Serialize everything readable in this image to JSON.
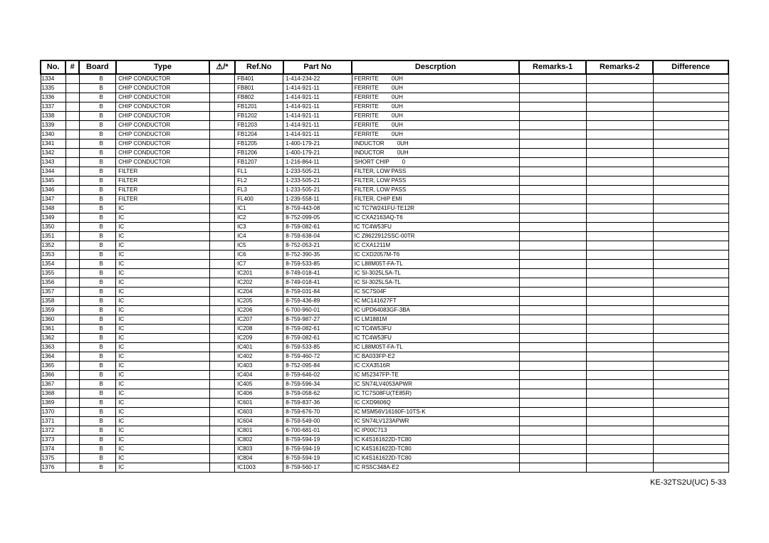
{
  "headers": {
    "no": "No.",
    "hash": "#",
    "board": "Board",
    "type": "Type",
    "warn": "⚠/*",
    "ref": "Ref.No",
    "part": "Part No",
    "desc": "Descrption",
    "r1": "Remarks-1",
    "r2": "Remarks-2",
    "diff": "Difference"
  },
  "footer": "KE-32TS2U(UC)    5-33",
  "rows": [
    {
      "no": "1334",
      "board": "B",
      "type": "CHIP CONDUCTOR",
      "ref": "FB401",
      "part": "1-414-234-22",
      "descA": "FERRITE",
      "descB": "0UH"
    },
    {
      "no": "1335",
      "board": "B",
      "type": "CHIP CONDUCTOR",
      "ref": "FB801",
      "part": "1-414-921-11",
      "descA": "FERRITE",
      "descB": "0UH"
    },
    {
      "no": "1336",
      "board": "B",
      "type": "CHIP CONDUCTOR",
      "ref": "FB802",
      "part": "1-414-921-11",
      "descA": "FERRITE",
      "descB": "0UH"
    },
    {
      "no": "1337",
      "board": "B",
      "type": "CHIP CONDUCTOR",
      "ref": "FB1201",
      "part": "1-414-921-11",
      "descA": "FERRITE",
      "descB": "0UH"
    },
    {
      "no": "1338",
      "board": "B",
      "type": "CHIP CONDUCTOR",
      "ref": "FB1202",
      "part": "1-414-921-11",
      "descA": "FERRITE",
      "descB": "0UH"
    },
    {
      "no": "1339",
      "board": "B",
      "type": "CHIP CONDUCTOR",
      "ref": "FB1203",
      "part": "1-414-921-11",
      "descA": "FERRITE",
      "descB": "0UH"
    },
    {
      "no": "1340",
      "board": "B",
      "type": "CHIP CONDUCTOR",
      "ref": "FB1204",
      "part": "1-414-921-11",
      "descA": "FERRITE",
      "descB": "0UH"
    },
    {
      "no": "1341",
      "board": "B",
      "type": "CHIP CONDUCTOR",
      "ref": "FB1205",
      "part": "1-400-179-21",
      "descA": "INDUCTOR",
      "descB": "0UH"
    },
    {
      "no": "1342",
      "board": "B",
      "type": "CHIP CONDUCTOR",
      "ref": "FB1206",
      "part": "1-400-179-21",
      "descA": "INDUCTOR",
      "descB": "0UH"
    },
    {
      "no": "1343",
      "board": "B",
      "type": "CHIP CONDUCTOR",
      "ref": "FB1207",
      "part": "1-216-864-11",
      "descA": "SHORT CHIP",
      "descB": "0"
    },
    {
      "no": "1344",
      "board": "B",
      "type": "FILTER",
      "ref": "FL1",
      "part": "1-233-505-21",
      "descA": "FILTER, LOW PASS",
      "descB": ""
    },
    {
      "no": "1345",
      "board": "B",
      "type": "FILTER",
      "ref": "FL2",
      "part": "1-233-505-21",
      "descA": "FILTER, LOW PASS",
      "descB": ""
    },
    {
      "no": "1346",
      "board": "B",
      "type": "FILTER",
      "ref": "FL3",
      "part": "1-233-505-21",
      "descA": "FILTER, LOW PASS",
      "descB": ""
    },
    {
      "no": "1347",
      "board": "B",
      "type": "FILTER",
      "ref": "FL400",
      "part": "1-239-558-11",
      "descA": "FILTER, CHIP EMI",
      "descB": ""
    },
    {
      "no": "1348",
      "board": "B",
      "type": "IC",
      "ref": "IC1",
      "part": "8-759-443-08",
      "descA": "IC TC7W241FU-TE12R",
      "descB": ""
    },
    {
      "no": "1349",
      "board": "B",
      "type": "IC",
      "ref": "IC2",
      "part": "8-752-099-05",
      "descA": "IC CXA2163AQ-T6",
      "descB": ""
    },
    {
      "no": "1350",
      "board": "B",
      "type": "IC",
      "ref": "IC3",
      "part": "8-759-082-61",
      "descA": "IC TC4W53FU",
      "descB": ""
    },
    {
      "no": "1351",
      "board": "B",
      "type": "IC",
      "ref": "IC4",
      "part": "8-759-638-04",
      "descA": "IC Z8622912SSC-00TR",
      "descB": ""
    },
    {
      "no": "1352",
      "board": "B",
      "type": "IC",
      "ref": "IC5",
      "part": "8-752-053-21",
      "descA": "IC CXA1211M",
      "descB": ""
    },
    {
      "no": "1353",
      "board": "B",
      "type": "IC",
      "ref": "IC6",
      "part": "8-752-390-35",
      "descA": "IC CXD2057M-T6",
      "descB": ""
    },
    {
      "no": "1354",
      "board": "B",
      "type": "IC",
      "ref": "IC7",
      "part": "8-759-533-85",
      "descA": "IC L88M05T-FA-TL",
      "descB": ""
    },
    {
      "no": "1355",
      "board": "B",
      "type": "IC",
      "ref": "IC201",
      "part": "8-749-018-41",
      "descA": "IC SI-3025LSA-TL",
      "descB": ""
    },
    {
      "no": "1356",
      "board": "B",
      "type": "IC",
      "ref": "IC202",
      "part": "8-749-018-41",
      "descA": "IC SI-3025LSA-TL",
      "descB": ""
    },
    {
      "no": "1357",
      "board": "B",
      "type": "IC",
      "ref": "IC204",
      "part": "8-759-031-84",
      "descA": "IC SC7S04F",
      "descB": ""
    },
    {
      "no": "1358",
      "board": "B",
      "type": "IC",
      "ref": "IC205",
      "part": "8-759-436-89",
      "descA": "IC MC141627FT",
      "descB": ""
    },
    {
      "no": "1359",
      "board": "B",
      "type": "IC",
      "ref": "IC206",
      "part": "6-700-960-01",
      "descA": "IC UPD64083GF-3BA",
      "descB": ""
    },
    {
      "no": "1360",
      "board": "B",
      "type": "IC",
      "ref": "IC207",
      "part": "8-759-987-27",
      "descA": "IC LM1881M",
      "descB": ""
    },
    {
      "no": "1361",
      "board": "B",
      "type": "IC",
      "ref": "IC208",
      "part": "8-759-082-61",
      "descA": "IC TC4W53FU",
      "descB": ""
    },
    {
      "no": "1362",
      "board": "B",
      "type": "IC",
      "ref": "IC209",
      "part": "8-759-082-61",
      "descA": "IC TC4W53FU",
      "descB": ""
    },
    {
      "no": "1363",
      "board": "B",
      "type": "IC",
      "ref": "IC401",
      "part": "8-759-533-85",
      "descA": "IC L88M05T-FA-TL",
      "descB": ""
    },
    {
      "no": "1364",
      "board": "B",
      "type": "IC",
      "ref": "IC402",
      "part": "8-759-460-72",
      "descA": "IC BA033FP-E2",
      "descB": ""
    },
    {
      "no": "1365",
      "board": "B",
      "type": "IC",
      "ref": "IC403",
      "part": "8-752-095-84",
      "descA": "IC CXA3516R",
      "descB": ""
    },
    {
      "no": "1366",
      "board": "B",
      "type": "IC",
      "ref": "IC404",
      "part": "8-759-646-02",
      "descA": "IC M52347FP-TE",
      "descB": ""
    },
    {
      "no": "1367",
      "board": "B",
      "type": "IC",
      "ref": "IC405",
      "part": "8-759-596-34",
      "descA": "IC SN74LV4053APWR",
      "descB": ""
    },
    {
      "no": "1368",
      "board": "B",
      "type": "IC",
      "ref": "IC406",
      "part": "8-759-058-62",
      "descA": "IC TC7S08FU(TE85R)",
      "descB": ""
    },
    {
      "no": "1369",
      "board": "B",
      "type": "IC",
      "ref": "IC601",
      "part": "8-759-837-36",
      "descA": "IC CXD9606Q",
      "descB": ""
    },
    {
      "no": "1370",
      "board": "B",
      "type": "IC",
      "ref": "IC603",
      "part": "8-759-676-70",
      "descA": "IC MSM56V16160F-10TS-K",
      "descB": ""
    },
    {
      "no": "1371",
      "board": "B",
      "type": "IC",
      "ref": "IC604",
      "part": "8-759-549-00",
      "descA": "IC SN74LV123APWR",
      "descB": ""
    },
    {
      "no": "1372",
      "board": "B",
      "type": "IC",
      "ref": "IC801",
      "part": "6-700-681-01",
      "descA": "IC IP00C713",
      "descB": ""
    },
    {
      "no": "1373",
      "board": "B",
      "type": "IC",
      "ref": "IC802",
      "part": "8-759-594-19",
      "descA": "IC K4S161622D-TC80",
      "descB": ""
    },
    {
      "no": "1374",
      "board": "B",
      "type": "IC",
      "ref": "IC803",
      "part": "8-759-594-19",
      "descA": "IC K4S161622D-TC80",
      "descB": ""
    },
    {
      "no": "1375",
      "board": "B",
      "type": "IC",
      "ref": "IC804",
      "part": "8-759-594-19",
      "descA": "IC K4S161622D-TC80",
      "descB": ""
    },
    {
      "no": "1376",
      "board": "B",
      "type": "IC",
      "ref": "IC1003",
      "part": "8-759-560-17",
      "descA": "IC RS5C348A-E2",
      "descB": ""
    }
  ]
}
